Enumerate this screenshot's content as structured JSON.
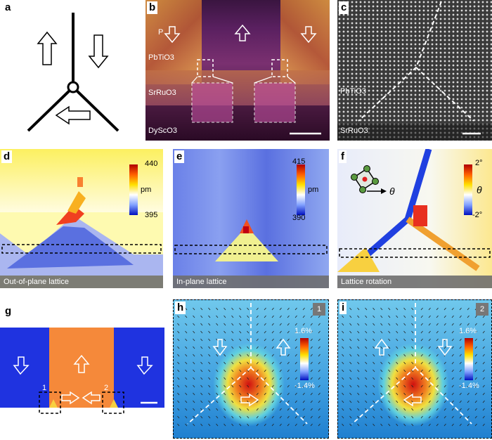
{
  "panels": {
    "a": {
      "label": "a"
    },
    "b": {
      "label": "b",
      "p_label": "P",
      "layers": [
        "PbTiO3",
        "SrRuO3",
        "DyScO3"
      ]
    },
    "c": {
      "label": "c",
      "layers": [
        "PbTiO3",
        "SrRuO3"
      ]
    },
    "d": {
      "label": "d",
      "caption": "Out-of-plane lattice",
      "cmax": "440",
      "cmin": "395",
      "unit": "pm"
    },
    "e": {
      "label": "e",
      "caption": "In-plane lattice",
      "cmax": "415",
      "cmin": "390",
      "unit": "pm"
    },
    "f": {
      "label": "f",
      "caption": "Lattice rotation",
      "cmax": "2°",
      "cmin": "-2°",
      "unit": "θ",
      "theta": "θ"
    },
    "g": {
      "label": "g",
      "box1": "1",
      "box2": "2"
    },
    "h": {
      "label": "h",
      "tag": "1",
      "cmax": "1.6%",
      "cmin": "-1.4%"
    },
    "i": {
      "label": "i",
      "tag": "2",
      "cmax": "1.6%",
      "cmin": "-1.4%"
    }
  },
  "colors": {
    "domain_blue": "#1f33e0",
    "domain_orange": "#f5893a"
  }
}
